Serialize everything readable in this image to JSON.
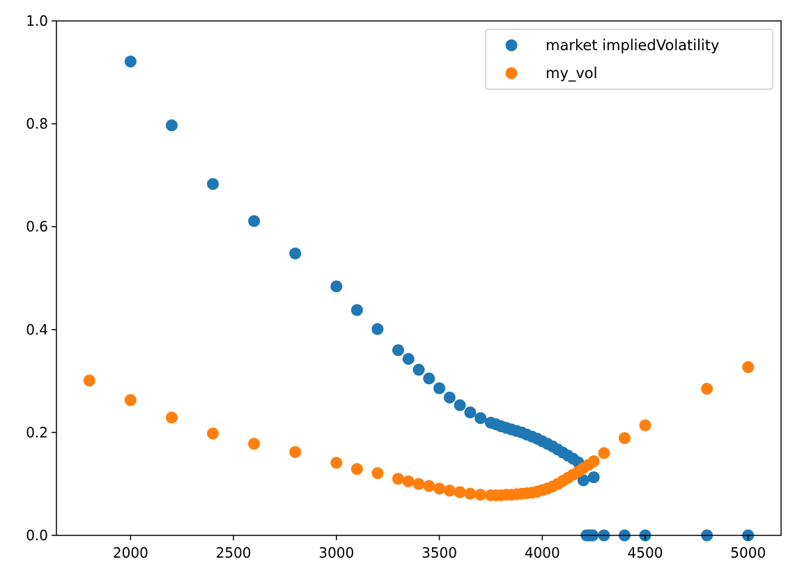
{
  "chart_data": {
    "type": "scatter",
    "xlim": [
      1640,
      5160
    ],
    "ylim": [
      0,
      1.0
    ],
    "x_ticks": [
      2000,
      2500,
      3000,
      3500,
      4000,
      4500,
      5000
    ],
    "y_ticks": [
      0.0,
      0.2,
      0.4,
      0.6,
      0.8,
      1.0
    ],
    "x_tick_labels": [
      "2000",
      "2500",
      "3000",
      "3500",
      "4000",
      "4500",
      "5000"
    ],
    "y_tick_labels": [
      "0.0",
      "0.2",
      "0.4",
      "0.6",
      "0.8",
      "1.0"
    ],
    "grid": false,
    "legend_position": "top-right",
    "series": [
      {
        "name": "market impliedVolatility",
        "color": "#1f77b4",
        "points": [
          [
            2000,
            0.921
          ],
          [
            2200,
            0.797
          ],
          [
            2400,
            0.683
          ],
          [
            2600,
            0.611
          ],
          [
            2800,
            0.548
          ],
          [
            3000,
            0.484
          ],
          [
            3100,
            0.438
          ],
          [
            3200,
            0.401
          ],
          [
            3300,
            0.36
          ],
          [
            3350,
            0.343
          ],
          [
            3400,
            0.322
          ],
          [
            3450,
            0.305
          ],
          [
            3500,
            0.286
          ],
          [
            3550,
            0.268
          ],
          [
            3600,
            0.253
          ],
          [
            3650,
            0.239
          ],
          [
            3700,
            0.228
          ],
          [
            3750,
            0.219
          ],
          [
            3775,
            0.216
          ],
          [
            3800,
            0.212
          ],
          [
            3825,
            0.209
          ],
          [
            3850,
            0.206
          ],
          [
            3875,
            0.203
          ],
          [
            3900,
            0.2
          ],
          [
            3925,
            0.196
          ],
          [
            3950,
            0.192
          ],
          [
            3975,
            0.188
          ],
          [
            4000,
            0.183
          ],
          [
            4025,
            0.178
          ],
          [
            4050,
            0.173
          ],
          [
            4075,
            0.167
          ],
          [
            4100,
            0.161
          ],
          [
            4125,
            0.155
          ],
          [
            4150,
            0.149
          ],
          [
            4175,
            0.142
          ],
          [
            4200,
            0.107
          ],
          [
            4250,
            0.113
          ],
          [
            4215,
            0.0
          ],
          [
            4225,
            0.0
          ],
          [
            4235,
            0.0
          ],
          [
            4245,
            0.0
          ],
          [
            4300,
            0.0
          ],
          [
            4400,
            0.0
          ],
          [
            4500,
            0.0
          ],
          [
            4800,
            0.0
          ],
          [
            5000,
            0.0
          ]
        ]
      },
      {
        "name": "my_vol",
        "color": "#ff7f0e",
        "points": [
          [
            1800,
            0.301
          ],
          [
            2000,
            0.263
          ],
          [
            2200,
            0.229
          ],
          [
            2400,
            0.198
          ],
          [
            2600,
            0.178
          ],
          [
            2800,
            0.162
          ],
          [
            3000,
            0.141
          ],
          [
            3100,
            0.129
          ],
          [
            3200,
            0.121
          ],
          [
            3300,
            0.11
          ],
          [
            3350,
            0.105
          ],
          [
            3400,
            0.1
          ],
          [
            3450,
            0.096
          ],
          [
            3500,
            0.091
          ],
          [
            3550,
            0.087
          ],
          [
            3600,
            0.084
          ],
          [
            3650,
            0.081
          ],
          [
            3700,
            0.079
          ],
          [
            3750,
            0.078
          ],
          [
            3775,
            0.078
          ],
          [
            3800,
            0.078
          ],
          [
            3825,
            0.079
          ],
          [
            3850,
            0.079
          ],
          [
            3875,
            0.08
          ],
          [
            3900,
            0.081
          ],
          [
            3925,
            0.082
          ],
          [
            3950,
            0.083
          ],
          [
            3975,
            0.085
          ],
          [
            4000,
            0.088
          ],
          [
            4025,
            0.091
          ],
          [
            4050,
            0.095
          ],
          [
            4075,
            0.1
          ],
          [
            4100,
            0.106
          ],
          [
            4125,
            0.112
          ],
          [
            4150,
            0.118
          ],
          [
            4175,
            0.124
          ],
          [
            4200,
            0.131
          ],
          [
            4225,
            0.137
          ],
          [
            4250,
            0.144
          ],
          [
            4300,
            0.16
          ],
          [
            4400,
            0.189
          ],
          [
            4500,
            0.214
          ],
          [
            4800,
            0.285
          ],
          [
            5000,
            0.327
          ]
        ]
      }
    ]
  }
}
